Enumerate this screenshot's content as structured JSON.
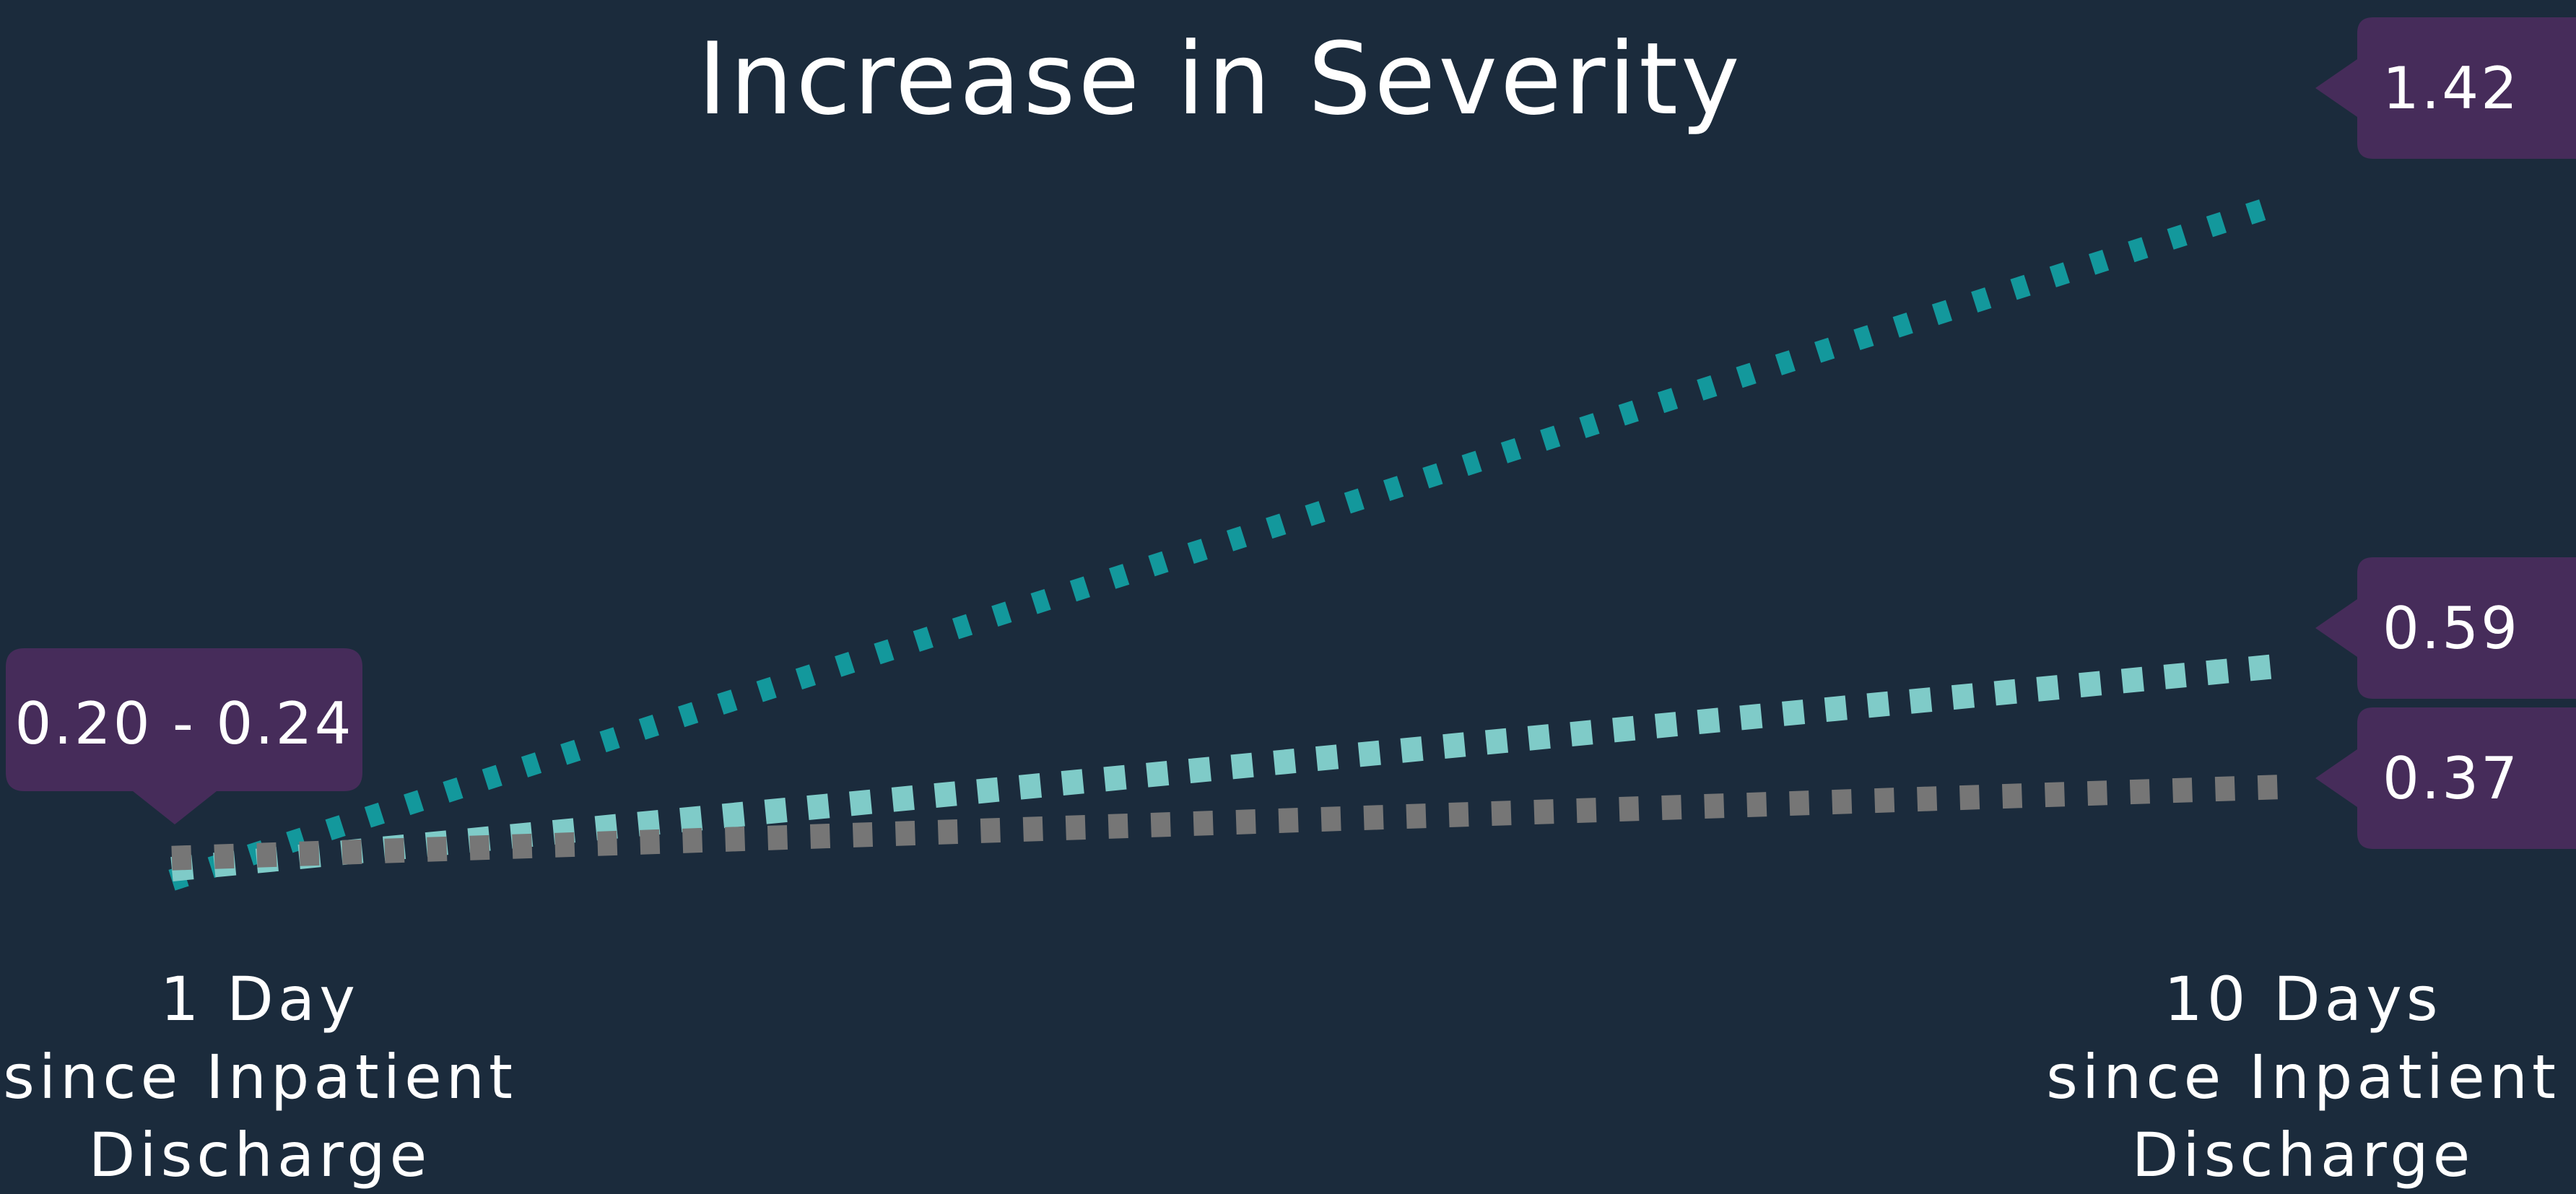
{
  "colors": {
    "background": "#1b2b3c",
    "callout": "#462c5a",
    "text": "#ffffff"
  },
  "chart_data": {
    "type": "line",
    "title": "Increase in Severity",
    "categories": [
      "1 Day\nsince Inpatient\nDischarge",
      "10 Days\nsince Inpatient\nDischarge"
    ],
    "series": [
      {
        "values": [
          0.2,
          1.42
        ],
        "color": "#13989c",
        "end_label": "1.42"
      },
      {
        "values": [
          0.22,
          0.59
        ],
        "color": "#7fcbc8",
        "end_label": "0.59"
      },
      {
        "values": [
          0.24,
          0.37
        ],
        "color": "#767676",
        "end_label": "0.37"
      }
    ],
    "start_label": "0.20 - 0.24",
    "line_style": "dotted",
    "grid": false,
    "legend": "none"
  }
}
